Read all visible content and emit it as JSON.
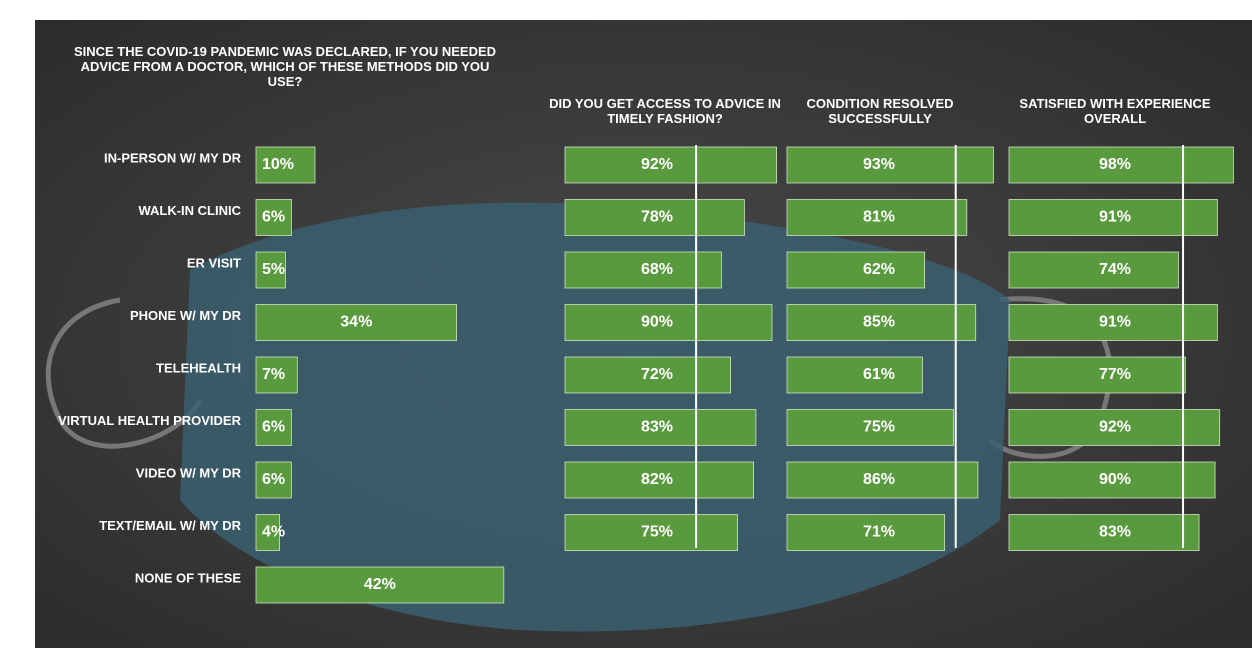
{
  "chart_data": [
    {
      "type": "bar",
      "orientation": "horizontal",
      "title": "SINCE THE COVID-19 PANDEMIC WAS DECLARED, IF YOU NEEDED ADVICE FROM A DOCTOR, WHICH OF THESE METHODS DID YOU USE?",
      "categories": [
        "IN-PERSON W/ MY DR",
        "WALK-IN CLINIC",
        "ER VISIT",
        "PHONE W/ MY DR",
        "TELEHEALTH",
        "VIRTUAL HEALTH PROVIDER",
        "VIDEO W/ MY DR",
        "TEXT/EMAIL W/ MY DR",
        "NONE OF THESE"
      ],
      "values": [
        10,
        6,
        5,
        34,
        7,
        6,
        6,
        4,
        42
      ],
      "value_labels": [
        "10%",
        "6%",
        "5%",
        "34%",
        "7%",
        "6%",
        "6%",
        "4%",
        "42%"
      ],
      "color": "#5a9a3e",
      "xlim": [
        0,
        50
      ]
    },
    {
      "type": "bar",
      "orientation": "horizontal",
      "title": "DID YOU GET ACCESS TO ADVICE IN TIMELY FASHION?",
      "values": [
        92,
        78,
        68,
        90,
        72,
        83,
        82,
        75
      ],
      "value_labels": [
        "92%",
        "78%",
        "68%",
        "90%",
        "72%",
        "83%",
        "82%",
        "75%"
      ],
      "color": "#5a9a3e",
      "xlim": [
        0,
        100
      ],
      "reference_line": 57
    },
    {
      "type": "bar",
      "orientation": "horizontal",
      "title": "CONDITION RESOLVED SUCCESSFULLY",
      "values": [
        93,
        81,
        62,
        85,
        61,
        75,
        86,
        71
      ],
      "value_labels": [
        "93%",
        "81%",
        "62%",
        "85%",
        "61%",
        "75%",
        "86%",
        "71%"
      ],
      "color": "#5a9a3e",
      "xlim": [
        0,
        100
      ],
      "reference_line": 76
    },
    {
      "type": "bar",
      "orientation": "horizontal",
      "title": "SATISFIED WITH EXPERIENCE OVERALL",
      "values": [
        98,
        91,
        74,
        91,
        77,
        92,
        90,
        83
      ],
      "value_labels": [
        "98%",
        "91%",
        "74%",
        "91%",
        "77%",
        "92%",
        "90%",
        "83%"
      ],
      "color": "#5a9a3e",
      "xlim": [
        0,
        100
      ],
      "reference_line": 76
    }
  ]
}
